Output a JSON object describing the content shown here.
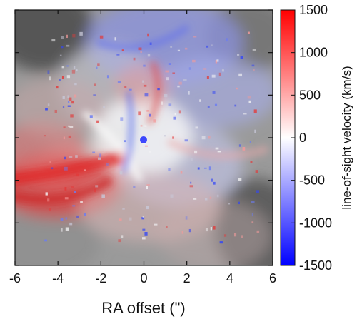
{
  "chart_data": {
    "type": "heatmap",
    "title": "",
    "xlabel": "RA offset (\")",
    "ylabel": "",
    "xlim": [
      -6,
      6
    ],
    "xticks": [
      -6,
      -4,
      -2,
      0,
      2,
      4,
      6
    ],
    "xtick_labels": [
      "-6",
      "-4",
      "-2",
      "0",
      "2",
      "4",
      "6"
    ],
    "ylim": [
      -6,
      6
    ],
    "yticks": [
      -6,
      -4,
      -2,
      0,
      2,
      4,
      6
    ],
    "grid": false,
    "colorbar": {
      "label": "line-of-sight velocity (km/s)",
      "range": [
        -1500,
        1500
      ],
      "ticks": [
        1500,
        1000,
        500,
        0,
        -500,
        -1000,
        -1500
      ],
      "tick_labels": [
        "1500",
        "1000",
        "500",
        "0",
        "-500",
        "-1000",
        "-1500"
      ],
      "colormap": [
        "#0000ff",
        "#ffffff",
        "#ff0000"
      ]
    },
    "description_colors": {
      "low": "#1f2cff",
      "mid": "#ffffff",
      "high": "#e21a1a",
      "background": "#8c8c8c"
    }
  }
}
